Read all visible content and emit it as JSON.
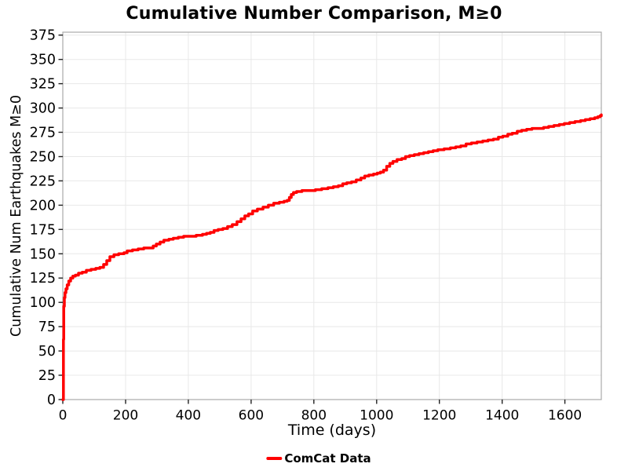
{
  "figure": {
    "background": "#ffffff"
  },
  "colors": {
    "grid": "#e8e8e8",
    "spine": "#aaaaaa",
    "tick": "#222222",
    "text": "#000000",
    "series_red": "#ff0000"
  },
  "legend": {
    "label": "ComCat Data",
    "swatch_color": "#ff0000",
    "position": "bottom-center"
  },
  "chart_data": {
    "type": "line",
    "title": "Cumulative Number Comparison, M≥0",
    "xlabel": "Time (days)",
    "ylabel": "Cumulative Num Earthquakes M≥0",
    "xlim": [
      0,
      1716
    ],
    "ylim": [
      0,
      378
    ],
    "x_ticks": [
      0,
      200,
      400,
      600,
      800,
      1000,
      1200,
      1400,
      1600
    ],
    "y_ticks": [
      0,
      25,
      50,
      75,
      100,
      125,
      150,
      175,
      200,
      225,
      250,
      275,
      300,
      325,
      350,
      375
    ],
    "grid": true,
    "legend_position": "bottom-center",
    "series": [
      {
        "name": "ComCat Data",
        "color": "#ff0000",
        "line_width": 3.5,
        "step": true,
        "points": [
          [
            0,
            0
          ],
          [
            2,
            62
          ],
          [
            3,
            96
          ],
          [
            5,
            105
          ],
          [
            7,
            110
          ],
          [
            10,
            114
          ],
          [
            14,
            118
          ],
          [
            19,
            122
          ],
          [
            25,
            125
          ],
          [
            32,
            127
          ],
          [
            40,
            128
          ],
          [
            50,
            130
          ],
          [
            62,
            131
          ],
          [
            75,
            133
          ],
          [
            90,
            134
          ],
          [
            105,
            135
          ],
          [
            118,
            136
          ],
          [
            130,
            139
          ],
          [
            140,
            143
          ],
          [
            150,
            147
          ],
          [
            163,
            149
          ],
          [
            178,
            150
          ],
          [
            195,
            151
          ],
          [
            205,
            153
          ],
          [
            222,
            154
          ],
          [
            240,
            155
          ],
          [
            258,
            156
          ],
          [
            275,
            156
          ],
          [
            288,
            158
          ],
          [
            298,
            160
          ],
          [
            310,
            162
          ],
          [
            322,
            164
          ],
          [
            338,
            165
          ],
          [
            352,
            166
          ],
          [
            368,
            167
          ],
          [
            385,
            168
          ],
          [
            405,
            168
          ],
          [
            425,
            169
          ],
          [
            445,
            170
          ],
          [
            458,
            171
          ],
          [
            470,
            172
          ],
          [
            482,
            174
          ],
          [
            495,
            175
          ],
          [
            510,
            176
          ],
          [
            525,
            178
          ],
          [
            540,
            180
          ],
          [
            555,
            183
          ],
          [
            568,
            186
          ],
          [
            580,
            189
          ],
          [
            592,
            191
          ],
          [
            605,
            194
          ],
          [
            620,
            196
          ],
          [
            638,
            198
          ],
          [
            655,
            200
          ],
          [
            672,
            202
          ],
          [
            690,
            203
          ],
          [
            705,
            204
          ],
          [
            715,
            205
          ],
          [
            722,
            208
          ],
          [
            728,
            211
          ],
          [
            735,
            213
          ],
          [
            745,
            214
          ],
          [
            762,
            215
          ],
          [
            785,
            215
          ],
          [
            805,
            216
          ],
          [
            825,
            217
          ],
          [
            845,
            218
          ],
          [
            862,
            219
          ],
          [
            878,
            220
          ],
          [
            892,
            222
          ],
          [
            905,
            223
          ],
          [
            920,
            224
          ],
          [
            935,
            226
          ],
          [
            950,
            228
          ],
          [
            962,
            230
          ],
          [
            975,
            231
          ],
          [
            990,
            232
          ],
          [
            1002,
            233
          ],
          [
            1012,
            234
          ],
          [
            1022,
            236
          ],
          [
            1032,
            240
          ],
          [
            1042,
            243
          ],
          [
            1052,
            245
          ],
          [
            1065,
            247
          ],
          [
            1080,
            248
          ],
          [
            1092,
            250
          ],
          [
            1105,
            251
          ],
          [
            1120,
            252
          ],
          [
            1135,
            253
          ],
          [
            1150,
            254
          ],
          [
            1165,
            255
          ],
          [
            1180,
            256
          ],
          [
            1195,
            257
          ],
          [
            1215,
            258
          ],
          [
            1235,
            259
          ],
          [
            1252,
            260
          ],
          [
            1268,
            261
          ],
          [
            1285,
            263
          ],
          [
            1302,
            264
          ],
          [
            1320,
            265
          ],
          [
            1338,
            266
          ],
          [
            1355,
            267
          ],
          [
            1372,
            268
          ],
          [
            1388,
            270
          ],
          [
            1402,
            271
          ],
          [
            1418,
            273
          ],
          [
            1432,
            274
          ],
          [
            1448,
            276
          ],
          [
            1462,
            277
          ],
          [
            1478,
            278
          ],
          [
            1495,
            279
          ],
          [
            1515,
            279
          ],
          [
            1532,
            280
          ],
          [
            1548,
            281
          ],
          [
            1565,
            282
          ],
          [
            1582,
            283
          ],
          [
            1598,
            284
          ],
          [
            1615,
            285
          ],
          [
            1632,
            286
          ],
          [
            1650,
            287
          ],
          [
            1665,
            288
          ],
          [
            1680,
            289
          ],
          [
            1695,
            290
          ],
          [
            1705,
            291
          ],
          [
            1712,
            292
          ],
          [
            1716,
            293
          ]
        ]
      }
    ]
  }
}
